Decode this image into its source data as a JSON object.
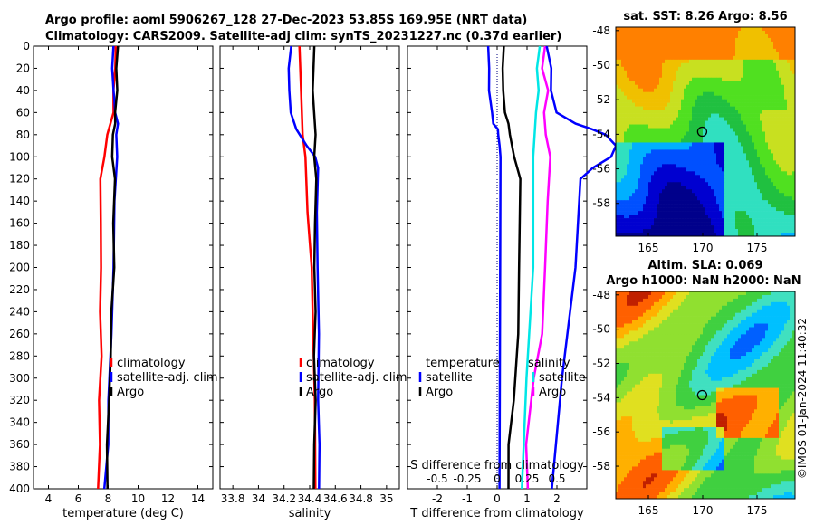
{
  "title": {
    "line1": "Argo profile: aoml 5906267_128 27-Dec-2023 53.85S 169.95E (NRT data)",
    "line2": "Climatology: CARS2009. Satellite-adj clim: synTS_20231227.nc (0.37d earlier)"
  },
  "depth_ticks": [
    "0",
    "20",
    "40",
    "60",
    "80",
    "100",
    "120",
    "140",
    "160",
    "180",
    "200",
    "220",
    "240",
    "260",
    "280",
    "300",
    "320",
    "340",
    "360",
    "380",
    "400"
  ],
  "colors": {
    "climatology": "#ff0000",
    "satellite": "#0000ff",
    "argo": "#000000",
    "t_sat": "#00e6e6",
    "s_sat": "#ff00ff"
  },
  "chart_data": [
    {
      "type": "line",
      "id": "temperature",
      "xlabel": "temperature (deg C)",
      "ylabel": "",
      "xlim": [
        3,
        15
      ],
      "ylim": [
        400,
        0
      ],
      "xticks": [
        "4",
        "6",
        "8",
        "10",
        "12",
        "14"
      ],
      "legend": [
        "climatology",
        "satellite-adj. clim",
        "Argo"
      ],
      "series": [
        {
          "name": "climatology",
          "depth": [
            0,
            20,
            40,
            60,
            80,
            100,
            120,
            160,
            200,
            240,
            280,
            320,
            360,
            400
          ],
          "values": [
            8.5,
            8.45,
            8.4,
            8.3,
            8.0,
            7.7,
            7.5,
            7.5,
            7.5,
            7.5,
            7.5,
            7.45,
            7.4,
            7.35
          ]
        },
        {
          "name": "satellite-adj. clim",
          "depth": [
            0,
            20,
            40,
            50,
            60,
            70,
            80,
            100,
            140,
            200,
            260,
            320,
            360,
            400
          ],
          "values": [
            8.3,
            8.3,
            8.35,
            8.4,
            8.5,
            8.6,
            8.6,
            8.55,
            8.45,
            8.35,
            8.2,
            8.05,
            7.95,
            7.8
          ]
        },
        {
          "name": "Argo",
          "depth": [
            0,
            20,
            40,
            60,
            70,
            80,
            100,
            120,
            160,
            200,
            240,
            280,
            320,
            360,
            400
          ],
          "values": [
            8.6,
            8.6,
            8.55,
            8.5,
            8.45,
            8.3,
            8.3,
            8.4,
            8.4,
            8.35,
            8.25,
            8.15,
            8.05,
            7.95,
            7.9
          ]
        }
      ]
    },
    {
      "type": "line",
      "id": "salinity",
      "xlabel": "salinity",
      "xlim": [
        33.7,
        35.1
      ],
      "ylim": [
        400,
        0
      ],
      "xticks": [
        "33.8",
        "34",
        "34.2",
        "34.4",
        "34.6",
        "34.8",
        "35"
      ],
      "legend": [
        "climatology",
        "satellite-adj. clim",
        "Argo"
      ],
      "series": [
        {
          "name": "climatology",
          "depth": [
            0,
            40,
            80,
            100,
            150,
            200,
            260,
            320,
            360,
            400
          ],
          "values": [
            34.32,
            34.33,
            34.35,
            34.36,
            34.39,
            34.41,
            34.43,
            34.44,
            34.44,
            34.45
          ]
        },
        {
          "name": "satellite-adj. clim",
          "depth": [
            0,
            20,
            40,
            60,
            75,
            90,
            100,
            110,
            150,
            200,
            260,
            320,
            360,
            400
          ],
          "values": [
            34.25,
            34.24,
            34.24,
            34.25,
            34.3,
            34.37,
            34.45,
            34.46,
            34.46,
            34.46,
            34.47,
            34.47,
            34.47,
            34.48
          ]
        },
        {
          "name": "Argo",
          "depth": [
            0,
            40,
            80,
            100,
            120,
            160,
            200,
            240,
            280,
            320,
            360,
            400
          ],
          "values": [
            34.43,
            34.43,
            34.44,
            34.44,
            34.45,
            34.44,
            34.44,
            34.44,
            34.44,
            34.44,
            34.44,
            34.43
          ]
        }
      ]
    },
    {
      "type": "line",
      "id": "difference",
      "xlabel": "T difference from climatology",
      "x2label": "S difference from climatology",
      "xlim": [
        -3,
        3
      ],
      "ylim": [
        400,
        0
      ],
      "xticks": [
        "-2",
        "-1",
        "0",
        "1",
        "2"
      ],
      "x2ticks": [
        "-0.5",
        "-0.25",
        "0",
        "0.25",
        "0.5"
      ],
      "legend_titles": [
        "temperature",
        "salinity"
      ],
      "legend": [
        "satellite",
        "Argo",
        "satellite",
        "Argo"
      ],
      "series": [
        {
          "name": "temperature satellite",
          "depth": [
            0,
            20,
            40,
            60,
            70,
            75,
            80,
            90,
            100,
            400
          ],
          "values": [
            -0.3,
            -0.28,
            -0.25,
            -0.2,
            -0.1,
            0.0,
            0.05,
            0.08,
            0.1,
            0.1
          ]
        },
        {
          "name": "temperature Argo",
          "depth": [
            0,
            20,
            40,
            60,
            70,
            80,
            100,
            120,
            200,
            260,
            320,
            360,
            400
          ],
          "values": [
            0.2,
            0.2,
            0.2,
            0.25,
            0.4,
            0.4,
            0.6,
            0.75,
            0.75,
            0.7,
            0.55,
            0.4,
            0.35
          ]
        },
        {
          "name": "salinity satellite",
          "depth": [
            0,
            20,
            40,
            60,
            100,
            200,
            300,
            400
          ],
          "values": [
            0.35,
            0.34,
            0.34,
            0.33,
            0.3,
            0.3,
            0.25,
            0.2
          ]
        },
        {
          "name": "salinity Argo",
          "depth": [
            0,
            20,
            40,
            60,
            80,
            100,
            140,
            200,
            260,
            300,
            360,
            400
          ],
          "values": [
            0.4,
            0.38,
            0.42,
            0.4,
            0.4,
            0.45,
            0.42,
            0.4,
            0.38,
            0.3,
            0.25,
            0.25
          ]
        },
        {
          "name": "salinity satellite-adj",
          "depth": [
            0,
            20,
            40,
            60,
            70,
            75,
            80,
            90,
            100,
            110,
            120,
            200,
            300,
            400
          ],
          "values": [
            0.42,
            0.45,
            0.45,
            0.5,
            0.65,
            0.8,
            0.9,
            1.0,
            0.95,
            0.8,
            0.7,
            0.65,
            0.55,
            0.45
          ]
        }
      ]
    }
  ],
  "maps": [
    {
      "title_lines": [
        "sat. SST: 8.26 Argo: 8.56"
      ],
      "yticks": [
        "-48",
        "-50",
        "-52",
        "-54",
        "-56",
        "-58"
      ],
      "xticks": [
        "165",
        "170",
        "175"
      ],
      "lon_range": [
        162,
        178.5
      ],
      "lat_range": [
        -59.9,
        -47.8
      ],
      "profile_lon": 169.95,
      "profile_lat": -53.85,
      "palette": [
        "#00008b",
        "#0000d0",
        "#0050ff",
        "#00b0ff",
        "#30e0c0",
        "#20c040",
        "#50e020",
        "#c8e020",
        "#f0c000",
        "#ff8000"
      ]
    },
    {
      "title_lines": [
        "Altim. SLA: 0.069",
        "Argo h1000: NaN h2000: NaN"
      ],
      "yticks": [
        "-48",
        "-50",
        "-52",
        "-54",
        "-56",
        "-58"
      ],
      "xticks": [
        "165",
        "170",
        "175"
      ],
      "lon_range": [
        162,
        178.5
      ],
      "lat_range": [
        -59.9,
        -47.8
      ],
      "profile_lon": 169.95,
      "profile_lat": -53.85,
      "palette": [
        "#0000c0",
        "#0060ff",
        "#00c0ff",
        "#40e0c0",
        "#40d040",
        "#90e030",
        "#e0e020",
        "#ffb000",
        "#ff6000",
        "#c02000"
      ]
    }
  ],
  "credit": "©IMOS 01-Jan-2024 11:40:32"
}
